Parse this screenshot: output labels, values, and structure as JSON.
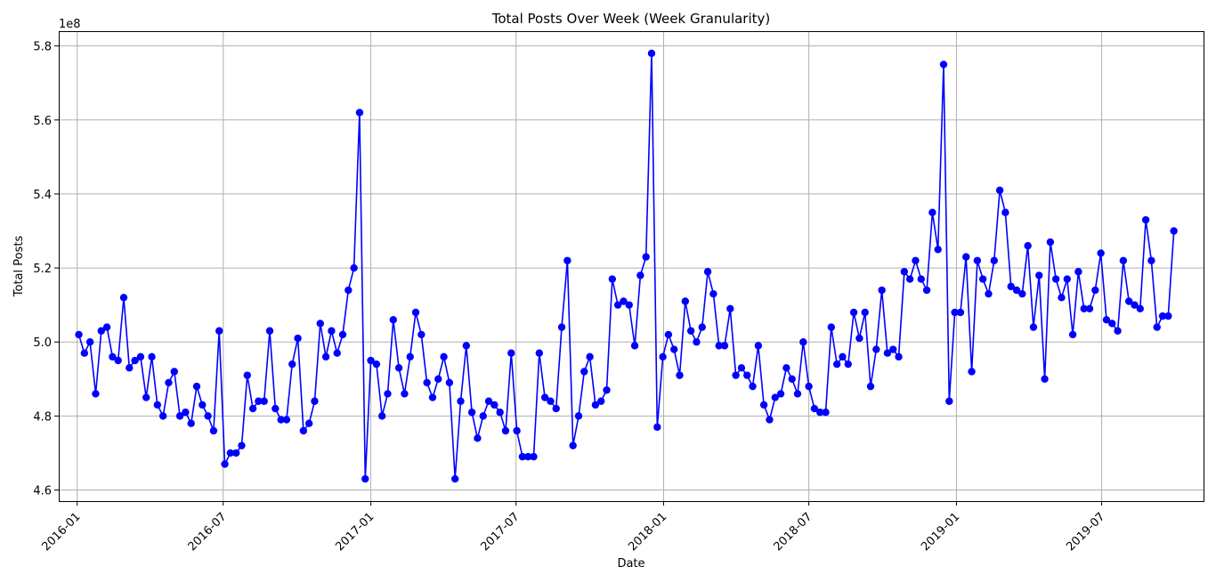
{
  "chart_data": {
    "type": "line",
    "title": "Total Posts Over Week (Week Granularity)",
    "xlabel": "Date",
    "ylabel": "Total Posts",
    "y_offset_label": "1e8",
    "ylim": [
      4.57,
      5.84
    ],
    "xlim": [
      "2015-12-09",
      "2019-11-05"
    ],
    "grid": true,
    "x_ticks": [
      {
        "date": "2016-01-01",
        "label": "2016-01"
      },
      {
        "date": "2016-07-01",
        "label": "2016-07"
      },
      {
        "date": "2017-01-01",
        "label": "2017-01"
      },
      {
        "date": "2017-07-01",
        "label": "2017-07"
      },
      {
        "date": "2018-01-01",
        "label": "2018-01"
      },
      {
        "date": "2018-07-01",
        "label": "2018-07"
      },
      {
        "date": "2019-01-01",
        "label": "2019-01"
      },
      {
        "date": "2019-07-01",
        "label": "2019-07"
      }
    ],
    "y_ticks": [
      {
        "value": 4.6,
        "label": "4.6"
      },
      {
        "value": 4.8,
        "label": "4.8"
      },
      {
        "value": 5.0,
        "label": "5.0"
      },
      {
        "value": 5.2,
        "label": "5.2"
      },
      {
        "value": 5.4,
        "label": "5.4"
      },
      {
        "value": 5.6,
        "label": "5.6"
      },
      {
        "value": 5.8,
        "label": "5.8"
      }
    ],
    "series": [
      {
        "color": "#0000ff",
        "marker": "circle",
        "points": [
          [
            "2016-01-03",
            5.02
          ],
          [
            "2016-01-10",
            4.97
          ],
          [
            "2016-01-17",
            5.0
          ],
          [
            "2016-01-24",
            4.86
          ],
          [
            "2016-01-31",
            5.03
          ],
          [
            "2016-02-07",
            5.04
          ],
          [
            "2016-02-14",
            4.96
          ],
          [
            "2016-02-21",
            4.95
          ],
          [
            "2016-02-28",
            5.12
          ],
          [
            "2016-03-06",
            4.93
          ],
          [
            "2016-03-13",
            4.95
          ],
          [
            "2016-03-20",
            4.96
          ],
          [
            "2016-03-27",
            4.85
          ],
          [
            "2016-04-03",
            4.96
          ],
          [
            "2016-04-10",
            4.83
          ],
          [
            "2016-04-17",
            4.8
          ],
          [
            "2016-04-24",
            4.89
          ],
          [
            "2016-05-01",
            4.92
          ],
          [
            "2016-05-08",
            4.8
          ],
          [
            "2016-05-15",
            4.81
          ],
          [
            "2016-05-22",
            4.78
          ],
          [
            "2016-05-29",
            4.88
          ],
          [
            "2016-06-05",
            4.83
          ],
          [
            "2016-06-12",
            4.8
          ],
          [
            "2016-06-19",
            4.76
          ],
          [
            "2016-06-26",
            5.03
          ],
          [
            "2016-07-03",
            4.67
          ],
          [
            "2016-07-10",
            4.7
          ],
          [
            "2016-07-17",
            4.7
          ],
          [
            "2016-07-24",
            4.72
          ],
          [
            "2016-07-31",
            4.91
          ],
          [
            "2016-08-07",
            4.82
          ],
          [
            "2016-08-14",
            4.84
          ],
          [
            "2016-08-21",
            4.84
          ],
          [
            "2016-08-28",
            5.03
          ],
          [
            "2016-09-04",
            4.82
          ],
          [
            "2016-09-11",
            4.79
          ],
          [
            "2016-09-18",
            4.79
          ],
          [
            "2016-09-25",
            4.94
          ],
          [
            "2016-10-02",
            5.01
          ],
          [
            "2016-10-09",
            4.76
          ],
          [
            "2016-10-16",
            4.78
          ],
          [
            "2016-10-23",
            4.84
          ],
          [
            "2016-10-30",
            5.05
          ],
          [
            "2016-11-06",
            4.96
          ],
          [
            "2016-11-13",
            5.03
          ],
          [
            "2016-11-20",
            4.97
          ],
          [
            "2016-11-27",
            5.02
          ],
          [
            "2016-12-04",
            5.14
          ],
          [
            "2016-12-11",
            5.2
          ],
          [
            "2016-12-18",
            5.62
          ],
          [
            "2016-12-25",
            4.63
          ],
          [
            "2017-01-01",
            4.95
          ],
          [
            "2017-01-08",
            4.94
          ],
          [
            "2017-01-15",
            4.8
          ],
          [
            "2017-01-22",
            4.86
          ],
          [
            "2017-01-29",
            5.06
          ],
          [
            "2017-02-05",
            4.93
          ],
          [
            "2017-02-12",
            4.86
          ],
          [
            "2017-02-19",
            4.96
          ],
          [
            "2017-02-26",
            5.08
          ],
          [
            "2017-03-05",
            5.02
          ],
          [
            "2017-03-12",
            4.89
          ],
          [
            "2017-03-19",
            4.85
          ],
          [
            "2017-03-26",
            4.9
          ],
          [
            "2017-04-02",
            4.96
          ],
          [
            "2017-04-09",
            4.89
          ],
          [
            "2017-04-16",
            4.63
          ],
          [
            "2017-04-23",
            4.84
          ],
          [
            "2017-04-30",
            4.99
          ],
          [
            "2017-05-07",
            4.81
          ],
          [
            "2017-05-14",
            4.74
          ],
          [
            "2017-05-21",
            4.8
          ],
          [
            "2017-05-28",
            4.84
          ],
          [
            "2017-06-04",
            4.83
          ],
          [
            "2017-06-11",
            4.81
          ],
          [
            "2017-06-18",
            4.76
          ],
          [
            "2017-06-25",
            4.97
          ],
          [
            "2017-07-02",
            4.76
          ],
          [
            "2017-07-09",
            4.69
          ],
          [
            "2017-07-16",
            4.69
          ],
          [
            "2017-07-23",
            4.69
          ],
          [
            "2017-07-30",
            4.97
          ],
          [
            "2017-08-06",
            4.85
          ],
          [
            "2017-08-13",
            4.84
          ],
          [
            "2017-08-20",
            4.82
          ],
          [
            "2017-08-27",
            5.04
          ],
          [
            "2017-09-03",
            5.22
          ],
          [
            "2017-09-10",
            4.72
          ],
          [
            "2017-09-17",
            4.8
          ],
          [
            "2017-09-24",
            4.92
          ],
          [
            "2017-10-01",
            4.96
          ],
          [
            "2017-10-08",
            4.83
          ],
          [
            "2017-10-15",
            4.84
          ],
          [
            "2017-10-22",
            4.87
          ],
          [
            "2017-10-29",
            5.17
          ],
          [
            "2017-11-05",
            5.1
          ],
          [
            "2017-11-12",
            5.11
          ],
          [
            "2017-11-19",
            5.1
          ],
          [
            "2017-11-26",
            4.99
          ],
          [
            "2017-12-03",
            5.18
          ],
          [
            "2017-12-10",
            5.23
          ],
          [
            "2017-12-17",
            5.78
          ],
          [
            "2017-12-24",
            4.77
          ],
          [
            "2017-12-31",
            4.96
          ],
          [
            "2018-01-07",
            5.02
          ],
          [
            "2018-01-14",
            4.98
          ],
          [
            "2018-01-21",
            4.91
          ],
          [
            "2018-01-28",
            5.11
          ],
          [
            "2018-02-04",
            5.03
          ],
          [
            "2018-02-11",
            5.0
          ],
          [
            "2018-02-18",
            5.04
          ],
          [
            "2018-02-25",
            5.19
          ],
          [
            "2018-03-04",
            5.13
          ],
          [
            "2018-03-11",
            4.99
          ],
          [
            "2018-03-18",
            4.99
          ],
          [
            "2018-03-25",
            5.09
          ],
          [
            "2018-04-01",
            4.91
          ],
          [
            "2018-04-08",
            4.93
          ],
          [
            "2018-04-15",
            4.91
          ],
          [
            "2018-04-22",
            4.88
          ],
          [
            "2018-04-29",
            4.99
          ],
          [
            "2018-05-06",
            4.83
          ],
          [
            "2018-05-13",
            4.79
          ],
          [
            "2018-05-20",
            4.85
          ],
          [
            "2018-05-27",
            4.86
          ],
          [
            "2018-06-03",
            4.93
          ],
          [
            "2018-06-10",
            4.9
          ],
          [
            "2018-06-17",
            4.86
          ],
          [
            "2018-06-24",
            5.0
          ],
          [
            "2018-07-01",
            4.88
          ],
          [
            "2018-07-08",
            4.82
          ],
          [
            "2018-07-15",
            4.81
          ],
          [
            "2018-07-22",
            4.81
          ],
          [
            "2018-07-29",
            5.04
          ],
          [
            "2018-08-05",
            4.94
          ],
          [
            "2018-08-12",
            4.96
          ],
          [
            "2018-08-19",
            4.94
          ],
          [
            "2018-08-26",
            5.08
          ],
          [
            "2018-09-02",
            5.01
          ],
          [
            "2018-09-09",
            5.08
          ],
          [
            "2018-09-16",
            4.88
          ],
          [
            "2018-09-23",
            4.98
          ],
          [
            "2018-09-30",
            5.14
          ],
          [
            "2018-10-07",
            4.97
          ],
          [
            "2018-10-14",
            4.98
          ],
          [
            "2018-10-21",
            4.96
          ],
          [
            "2018-10-28",
            5.19
          ],
          [
            "2018-11-04",
            5.17
          ],
          [
            "2018-11-11",
            5.22
          ],
          [
            "2018-11-18",
            5.17
          ],
          [
            "2018-11-25",
            5.14
          ],
          [
            "2018-12-02",
            5.35
          ],
          [
            "2018-12-09",
            5.25
          ],
          [
            "2018-12-16",
            5.75
          ],
          [
            "2018-12-23",
            4.84
          ],
          [
            "2018-12-30",
            5.08
          ],
          [
            "2019-01-06",
            5.08
          ],
          [
            "2019-01-13",
            5.23
          ],
          [
            "2019-01-20",
            4.92
          ],
          [
            "2019-01-27",
            5.22
          ],
          [
            "2019-02-03",
            5.17
          ],
          [
            "2019-02-10",
            5.13
          ],
          [
            "2019-02-17",
            5.22
          ],
          [
            "2019-02-24",
            5.41
          ],
          [
            "2019-03-03",
            5.35
          ],
          [
            "2019-03-10",
            5.15
          ],
          [
            "2019-03-17",
            5.14
          ],
          [
            "2019-03-24",
            5.13
          ],
          [
            "2019-03-31",
            5.26
          ],
          [
            "2019-04-07",
            5.04
          ],
          [
            "2019-04-14",
            5.18
          ],
          [
            "2019-04-21",
            4.9
          ],
          [
            "2019-04-28",
            5.27
          ],
          [
            "2019-05-05",
            5.17
          ],
          [
            "2019-05-12",
            5.12
          ],
          [
            "2019-05-19",
            5.17
          ],
          [
            "2019-05-26",
            5.02
          ],
          [
            "2019-06-02",
            5.19
          ],
          [
            "2019-06-09",
            5.09
          ],
          [
            "2019-06-16",
            5.09
          ],
          [
            "2019-06-23",
            5.14
          ],
          [
            "2019-06-30",
            5.24
          ],
          [
            "2019-07-07",
            5.06
          ],
          [
            "2019-07-14",
            5.05
          ],
          [
            "2019-07-21",
            5.03
          ],
          [
            "2019-07-28",
            5.22
          ],
          [
            "2019-08-04",
            5.11
          ],
          [
            "2019-08-11",
            5.1
          ],
          [
            "2019-08-18",
            5.09
          ],
          [
            "2019-08-25",
            5.33
          ],
          [
            "2019-09-01",
            5.22
          ],
          [
            "2019-09-08",
            5.04
          ],
          [
            "2019-09-15",
            5.07
          ],
          [
            "2019-09-22",
            5.07
          ],
          [
            "2019-09-29",
            5.3
          ]
        ]
      }
    ]
  }
}
